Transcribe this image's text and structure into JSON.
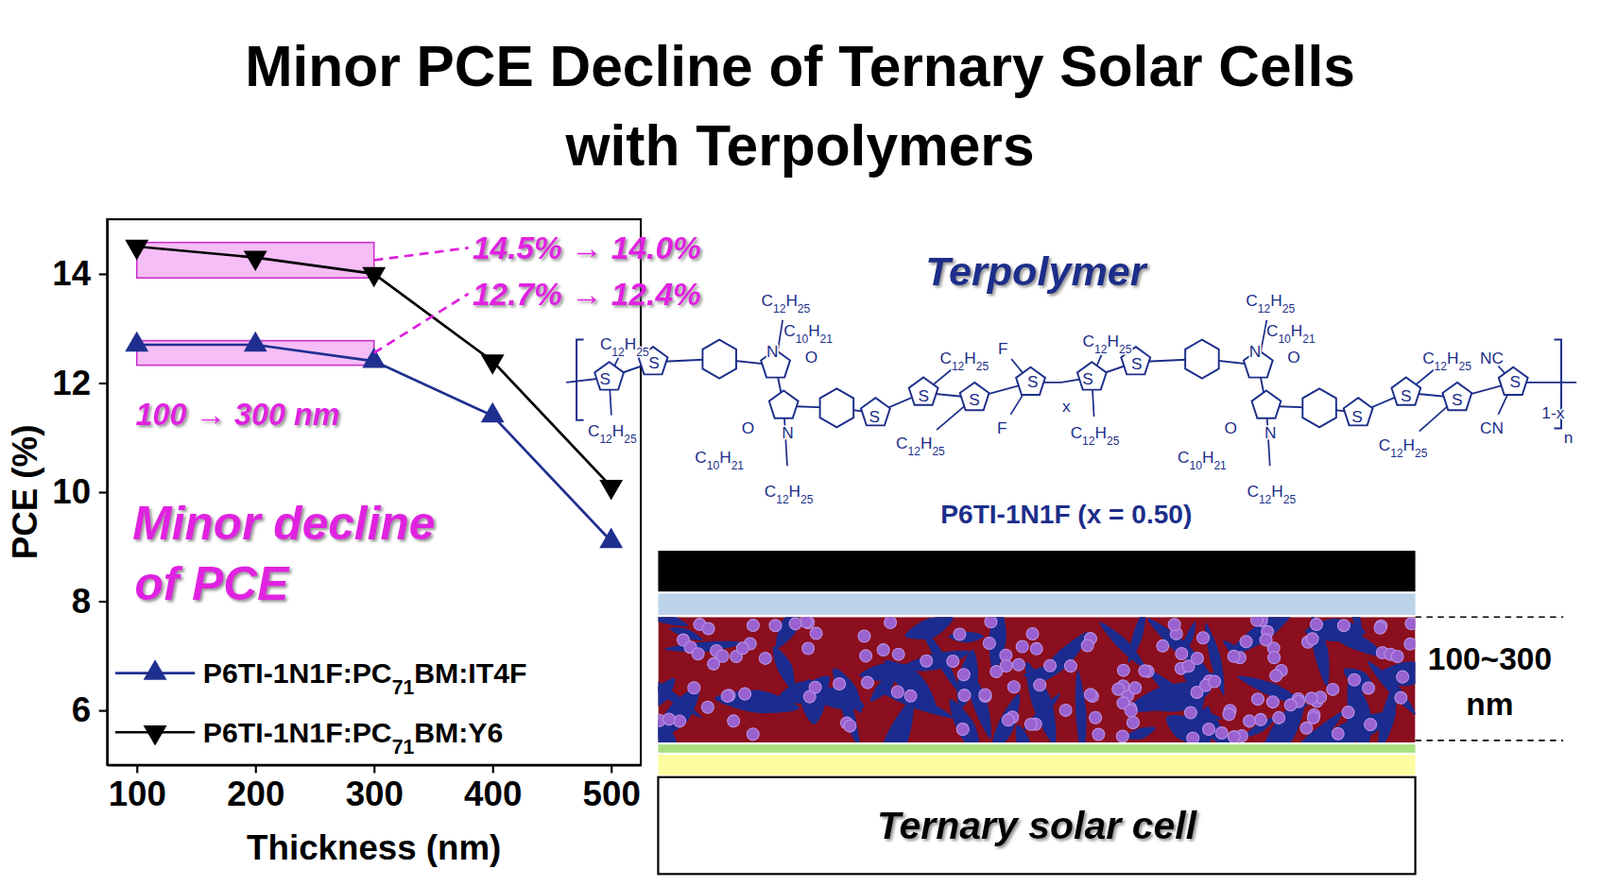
{
  "chart_data": {
    "type": "line",
    "title": "Minor PCE Decline of Ternary Solar Cells",
    "subtitle": "with Terpolymers",
    "x_label": "Thickness (nm)",
    "y_label": "PCE (%)",
    "x": [
      100,
      200,
      300,
      400,
      500
    ],
    "series": [
      {
        "name": "P6TI-1N1F:PC71BM:IT4F",
        "color": "#1f2f8f",
        "marker": "triangle-up",
        "line_style": "solid",
        "values": [
          12.7,
          12.7,
          12.4,
          11.4,
          9.1
        ]
      },
      {
        "name": "P6TI-1N1F:PC71BM:Y6",
        "color": "#000000",
        "marker": "triangle-down",
        "line_style": "solid",
        "values": [
          14.5,
          14.3,
          14.0,
          12.4,
          10.1
        ]
      }
    ],
    "xlim": [
      75,
      525
    ],
    "ylim": [
      5,
      15
    ],
    "xticks": [
      100,
      200,
      300,
      400,
      500
    ],
    "yticks": [
      6,
      8,
      10,
      12,
      14
    ],
    "grid": false,
    "legend": "lower left",
    "annotations": [
      "14.5% → 14.0%",
      "12.7% → 12.4%",
      "100 → 300 nm",
      "Minor decline",
      "of PCE"
    ]
  },
  "structure": {
    "title": "Terpolymer",
    "name": "P6TI-1N1F (x = 0.50)",
    "labels": [
      "C12H25",
      "S",
      "C12H25",
      "S",
      "C12H25",
      "C10H21",
      "N",
      "O",
      "O",
      "N",
      "C10H21",
      "C12H25",
      "S",
      "C12H25",
      "S",
      "S",
      "F",
      "C12H25",
      "F",
      "S",
      "x",
      "C12H25",
      "S",
      "C12H25",
      "S",
      "C12H25",
      "C10H21",
      "N",
      "O",
      "O",
      "N",
      "C10H21",
      "C12H25",
      "S",
      "C12H25",
      "S",
      "S",
      "NC",
      "C12H25",
      "CN",
      "S",
      "1-x",
      "n"
    ]
  },
  "device": {
    "title": "Ternary solar cell",
    "thickness_label": [
      "100~300",
      "nm"
    ]
  }
}
